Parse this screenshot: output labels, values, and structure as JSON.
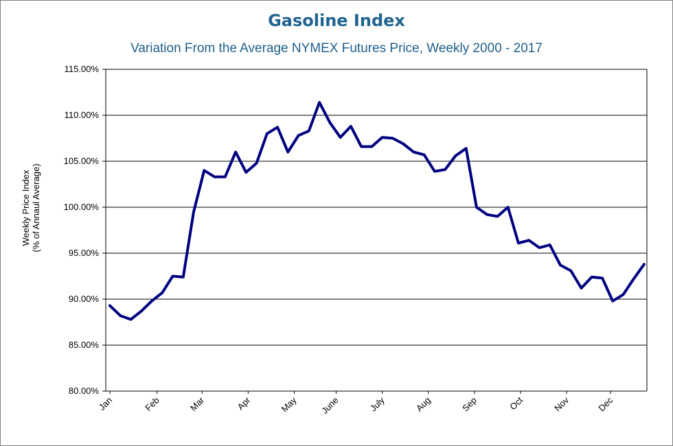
{
  "chart_data": {
    "type": "line",
    "title": "Gasoline Index",
    "subtitle": "Variation From the Average NYMEX Futures Price, Weekly 2000 - 2017",
    "ylabel_line1": "Weekly Price Index",
    "ylabel_line2": "(% of Annaul Average)",
    "xlabel": "",
    "ylim": [
      80,
      115
    ],
    "yticks": [
      80,
      85,
      90,
      95,
      100,
      105,
      110,
      115
    ],
    "ytick_labels": [
      "80.00%",
      "85.00%",
      "90.00%",
      "95.00%",
      "100.00%",
      "105.00%",
      "110.00%",
      "115.00%"
    ],
    "grid": true,
    "month_labels": [
      {
        "label": "Jan",
        "week": 1
      },
      {
        "label": "Feb",
        "week": 5.5
      },
      {
        "label": "Mar",
        "week": 9.8
      },
      {
        "label": "Apr",
        "week": 14.2
      },
      {
        "label": "May",
        "week": 18.6
      },
      {
        "label": "June",
        "week": 22.6
      },
      {
        "label": "July",
        "week": 27.0
      },
      {
        "label": "Aug",
        "week": 31.4
      },
      {
        "label": "Sep",
        "week": 35.8
      },
      {
        "label": "Oct",
        "week": 40.2
      },
      {
        "label": "Nov",
        "week": 44.6
      },
      {
        "label": "Dec",
        "week": 48.8
      }
    ],
    "series": [
      {
        "name": "Gasoline Index",
        "color": "#000080",
        "x": [
          1,
          2,
          3,
          4,
          5,
          6,
          7,
          8,
          9,
          10,
          11,
          12,
          13,
          14,
          15,
          16,
          17,
          18,
          19,
          20,
          21,
          22,
          23,
          24,
          25,
          26,
          27,
          28,
          29,
          30,
          31,
          32,
          33,
          34,
          35,
          36,
          37,
          38,
          39,
          40,
          41,
          42,
          43,
          44,
          45,
          46,
          47,
          48,
          49,
          50,
          51,
          52
        ],
        "values": [
          89.3,
          88.2,
          87.8,
          88.7,
          89.8,
          90.7,
          92.5,
          92.4,
          99.5,
          104.0,
          103.3,
          103.3,
          106.0,
          103.8,
          104.8,
          108.0,
          108.7,
          106.0,
          107.8,
          108.3,
          111.4,
          109.2,
          107.6,
          108.8,
          106.6,
          106.6,
          107.6,
          107.5,
          106.9,
          106.0,
          105.7,
          103.9,
          104.1,
          105.6,
          106.4,
          100.0,
          99.2,
          99.0,
          100.0,
          96.1,
          96.4,
          95.6,
          95.9,
          93.7,
          93.1,
          91.2,
          92.4,
          92.3,
          89.8,
          90.5,
          92.2,
          93.8
        ]
      }
    ]
  }
}
